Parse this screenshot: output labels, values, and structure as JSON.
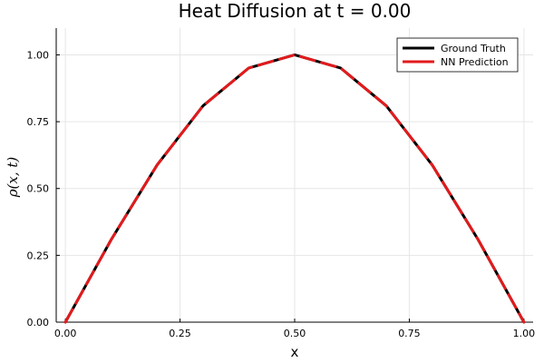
{
  "chart_data": {
    "type": "line",
    "title": "Heat Diffusion at t = 0.00",
    "xlabel": "x",
    "ylabel": "ρ(x, t)",
    "xlim": [
      -0.02,
      1.02
    ],
    "ylim": [
      0.0,
      1.1
    ],
    "xticks": [
      0.0,
      0.25,
      0.5,
      0.75,
      1.0
    ],
    "xtick_labels": [
      "0.00",
      "0.25",
      "0.50",
      "0.75",
      "1.00"
    ],
    "yticks": [
      0.0,
      0.25,
      0.5,
      0.75,
      1.0
    ],
    "ytick_labels": [
      "0.00",
      "0.25",
      "0.50",
      "0.75",
      "1.00"
    ],
    "grid": true,
    "legend_position": "top-right",
    "x": [
      0.0,
      0.1,
      0.2,
      0.3,
      0.4,
      0.5,
      0.6,
      0.7,
      0.8,
      0.9,
      1.0
    ],
    "series": [
      {
        "name": "Ground Truth",
        "color": "#000000",
        "style": "solid",
        "values": [
          0.0,
          0.309,
          0.588,
          0.809,
          0.951,
          1.0,
          0.951,
          0.809,
          0.588,
          0.309,
          0.0
        ]
      },
      {
        "name": "NN Prediction",
        "color": "#e31a1c",
        "style": "dashed",
        "values": [
          0.0,
          0.309,
          0.588,
          0.809,
          0.951,
          1.0,
          0.951,
          0.809,
          0.588,
          0.309,
          0.0
        ]
      }
    ]
  }
}
